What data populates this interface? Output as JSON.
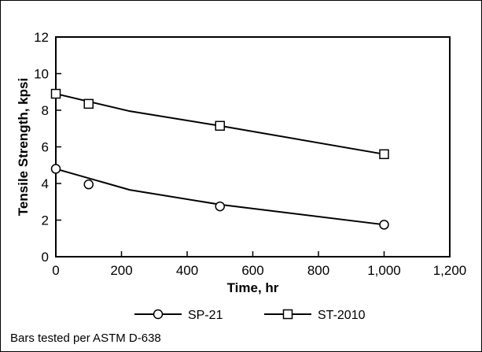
{
  "chart_data": {
    "type": "line",
    "xlabel": "Time, hr",
    "ylabel": "Tensile Strength, kpsi",
    "xlim": [
      0,
      1200
    ],
    "ylim": [
      0,
      12
    ],
    "xticks": [
      "0",
      "200",
      "400",
      "600",
      "800",
      "1,000",
      "1,200"
    ],
    "yticks": [
      "0",
      "2",
      "4",
      "6",
      "8",
      "10",
      "12"
    ],
    "series": [
      {
        "name": "SP-21",
        "marker": "circle",
        "points": [
          [
            0,
            4.8
          ],
          [
            100,
            3.95
          ],
          [
            500,
            2.75
          ],
          [
            1000,
            1.75
          ]
        ],
        "fit": [
          [
            0,
            4.8
          ],
          [
            225,
            3.65
          ],
          [
            500,
            2.85
          ],
          [
            1000,
            1.75
          ]
        ]
      },
      {
        "name": "ST-2010",
        "marker": "square",
        "points": [
          [
            0,
            8.9
          ],
          [
            100,
            8.35
          ],
          [
            500,
            7.15
          ],
          [
            1000,
            5.6
          ]
        ],
        "fit": [
          [
            0,
            8.9
          ],
          [
            225,
            7.95
          ],
          [
            500,
            7.15
          ],
          [
            1000,
            5.6
          ]
        ]
      }
    ],
    "legend_position": "bottom-center",
    "grid": false
  },
  "note": "Bars tested per ASTM D-638"
}
